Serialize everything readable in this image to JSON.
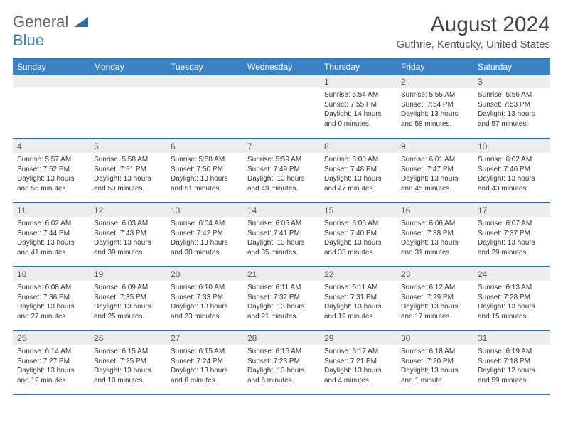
{
  "logo": {
    "top": "General",
    "bottom": "Blue"
  },
  "title": "August 2024",
  "location": "Guthrie, Kentucky, United States",
  "colors": {
    "header_bg": "#3b82c4",
    "header_text": "#ffffff",
    "border": "#2f6fa7",
    "daynum_bg": "#ececec",
    "text": "#333333",
    "title_text": "#444444"
  },
  "typography": {
    "title_fontsize": 30,
    "location_fontsize": 15,
    "header_fontsize": 12,
    "daynum_fontsize": 12,
    "body_fontsize": 10
  },
  "weekdays": [
    "Sunday",
    "Monday",
    "Tuesday",
    "Wednesday",
    "Thursday",
    "Friday",
    "Saturday"
  ],
  "weeks": [
    [
      {
        "empty": true
      },
      {
        "empty": true
      },
      {
        "empty": true
      },
      {
        "empty": true
      },
      {
        "num": "1",
        "sunrise": "Sunrise: 5:54 AM",
        "sunset": "Sunset: 7:55 PM",
        "daylight": "Daylight: 14 hours and 0 minutes."
      },
      {
        "num": "2",
        "sunrise": "Sunrise: 5:55 AM",
        "sunset": "Sunset: 7:54 PM",
        "daylight": "Daylight: 13 hours and 58 minutes."
      },
      {
        "num": "3",
        "sunrise": "Sunrise: 5:56 AM",
        "sunset": "Sunset: 7:53 PM",
        "daylight": "Daylight: 13 hours and 57 minutes."
      }
    ],
    [
      {
        "num": "4",
        "sunrise": "Sunrise: 5:57 AM",
        "sunset": "Sunset: 7:52 PM",
        "daylight": "Daylight: 13 hours and 55 minutes."
      },
      {
        "num": "5",
        "sunrise": "Sunrise: 5:58 AM",
        "sunset": "Sunset: 7:51 PM",
        "daylight": "Daylight: 13 hours and 53 minutes."
      },
      {
        "num": "6",
        "sunrise": "Sunrise: 5:58 AM",
        "sunset": "Sunset: 7:50 PM",
        "daylight": "Daylight: 13 hours and 51 minutes."
      },
      {
        "num": "7",
        "sunrise": "Sunrise: 5:59 AM",
        "sunset": "Sunset: 7:49 PM",
        "daylight": "Daylight: 13 hours and 49 minutes."
      },
      {
        "num": "8",
        "sunrise": "Sunrise: 6:00 AM",
        "sunset": "Sunset: 7:48 PM",
        "daylight": "Daylight: 13 hours and 47 minutes."
      },
      {
        "num": "9",
        "sunrise": "Sunrise: 6:01 AM",
        "sunset": "Sunset: 7:47 PM",
        "daylight": "Daylight: 13 hours and 45 minutes."
      },
      {
        "num": "10",
        "sunrise": "Sunrise: 6:02 AM",
        "sunset": "Sunset: 7:46 PM",
        "daylight": "Daylight: 13 hours and 43 minutes."
      }
    ],
    [
      {
        "num": "11",
        "sunrise": "Sunrise: 6:02 AM",
        "sunset": "Sunset: 7:44 PM",
        "daylight": "Daylight: 13 hours and 41 minutes."
      },
      {
        "num": "12",
        "sunrise": "Sunrise: 6:03 AM",
        "sunset": "Sunset: 7:43 PM",
        "daylight": "Daylight: 13 hours and 39 minutes."
      },
      {
        "num": "13",
        "sunrise": "Sunrise: 6:04 AM",
        "sunset": "Sunset: 7:42 PM",
        "daylight": "Daylight: 13 hours and 38 minutes."
      },
      {
        "num": "14",
        "sunrise": "Sunrise: 6:05 AM",
        "sunset": "Sunset: 7:41 PM",
        "daylight": "Daylight: 13 hours and 35 minutes."
      },
      {
        "num": "15",
        "sunrise": "Sunrise: 6:06 AM",
        "sunset": "Sunset: 7:40 PM",
        "daylight": "Daylight: 13 hours and 33 minutes."
      },
      {
        "num": "16",
        "sunrise": "Sunrise: 6:06 AM",
        "sunset": "Sunset: 7:38 PM",
        "daylight": "Daylight: 13 hours and 31 minutes."
      },
      {
        "num": "17",
        "sunrise": "Sunrise: 6:07 AM",
        "sunset": "Sunset: 7:37 PM",
        "daylight": "Daylight: 13 hours and 29 minutes."
      }
    ],
    [
      {
        "num": "18",
        "sunrise": "Sunrise: 6:08 AM",
        "sunset": "Sunset: 7:36 PM",
        "daylight": "Daylight: 13 hours and 27 minutes."
      },
      {
        "num": "19",
        "sunrise": "Sunrise: 6:09 AM",
        "sunset": "Sunset: 7:35 PM",
        "daylight": "Daylight: 13 hours and 25 minutes."
      },
      {
        "num": "20",
        "sunrise": "Sunrise: 6:10 AM",
        "sunset": "Sunset: 7:33 PM",
        "daylight": "Daylight: 13 hours and 23 minutes."
      },
      {
        "num": "21",
        "sunrise": "Sunrise: 6:11 AM",
        "sunset": "Sunset: 7:32 PM",
        "daylight": "Daylight: 13 hours and 21 minutes."
      },
      {
        "num": "22",
        "sunrise": "Sunrise: 6:11 AM",
        "sunset": "Sunset: 7:31 PM",
        "daylight": "Daylight: 13 hours and 19 minutes."
      },
      {
        "num": "23",
        "sunrise": "Sunrise: 6:12 AM",
        "sunset": "Sunset: 7:29 PM",
        "daylight": "Daylight: 13 hours and 17 minutes."
      },
      {
        "num": "24",
        "sunrise": "Sunrise: 6:13 AM",
        "sunset": "Sunset: 7:28 PM",
        "daylight": "Daylight: 13 hours and 15 minutes."
      }
    ],
    [
      {
        "num": "25",
        "sunrise": "Sunrise: 6:14 AM",
        "sunset": "Sunset: 7:27 PM",
        "daylight": "Daylight: 13 hours and 12 minutes."
      },
      {
        "num": "26",
        "sunrise": "Sunrise: 6:15 AM",
        "sunset": "Sunset: 7:25 PM",
        "daylight": "Daylight: 13 hours and 10 minutes."
      },
      {
        "num": "27",
        "sunrise": "Sunrise: 6:15 AM",
        "sunset": "Sunset: 7:24 PM",
        "daylight": "Daylight: 13 hours and 8 minutes."
      },
      {
        "num": "28",
        "sunrise": "Sunrise: 6:16 AM",
        "sunset": "Sunset: 7:23 PM",
        "daylight": "Daylight: 13 hours and 6 minutes."
      },
      {
        "num": "29",
        "sunrise": "Sunrise: 6:17 AM",
        "sunset": "Sunset: 7:21 PM",
        "daylight": "Daylight: 13 hours and 4 minutes."
      },
      {
        "num": "30",
        "sunrise": "Sunrise: 6:18 AM",
        "sunset": "Sunset: 7:20 PM",
        "daylight": "Daylight: 13 hours and 1 minute."
      },
      {
        "num": "31",
        "sunrise": "Sunrise: 6:19 AM",
        "sunset": "Sunset: 7:18 PM",
        "daylight": "Daylight: 12 hours and 59 minutes."
      }
    ]
  ]
}
